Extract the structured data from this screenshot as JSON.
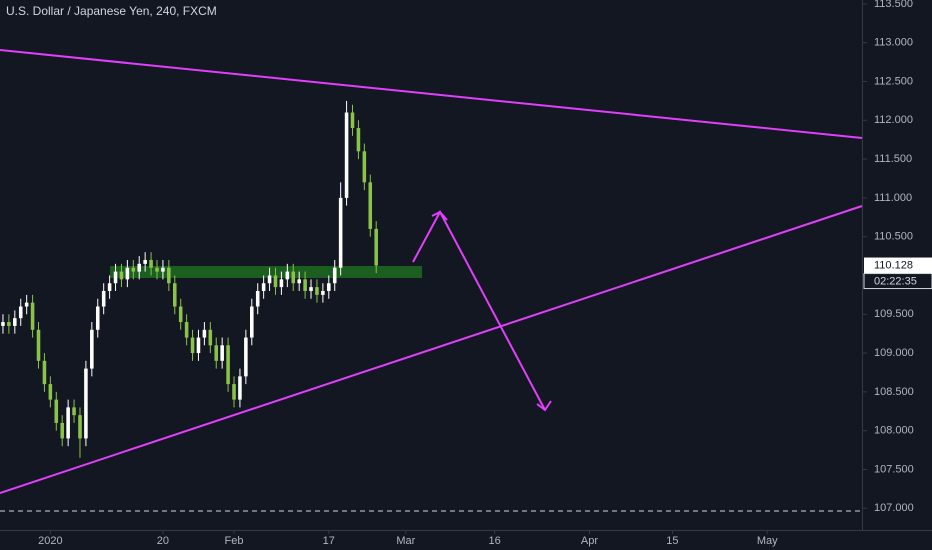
{
  "chart_data": {
    "type": "candlestick",
    "title": "U.S. Dollar / Japanese Yen, 240, FXCM",
    "countdown": "02:22:35",
    "up_color": "#ffffff",
    "down_color": "#8bc34a",
    "x": [
      -8,
      -7,
      -6,
      -5,
      -4,
      -3,
      -2,
      -1,
      0,
      1,
      2,
      3,
      4,
      5,
      6,
      7,
      8,
      9,
      10,
      11,
      12,
      13,
      14,
      15,
      16,
      17,
      18,
      19,
      20,
      21,
      22,
      23,
      24,
      25,
      26,
      27,
      28,
      29,
      30,
      31,
      32,
      33,
      34,
      35,
      36,
      37,
      38,
      39,
      40,
      41,
      42,
      43,
      44,
      45,
      46,
      47,
      48,
      49,
      50,
      51,
      52,
      53,
      54,
      55
    ],
    "open": [
      109.35,
      109.4,
      109.35,
      109.45,
      109.6,
      109.65,
      109.3,
      108.9,
      108.6,
      108.4,
      108.1,
      107.9,
      108.3,
      108.2,
      107.9,
      108.8,
      109.3,
      109.6,
      109.8,
      109.9,
      110.05,
      109.95,
      110.1,
      110.05,
      110.15,
      110.2,
      110.1,
      110.05,
      110.1,
      109.9,
      109.6,
      109.4,
      109.2,
      109.0,
      109.2,
      109.3,
      109.1,
      108.9,
      109.1,
      108.6,
      108.4,
      108.7,
      109.2,
      109.6,
      109.8,
      109.9,
      110.0,
      109.85,
      109.95,
      110.05,
      109.9,
      109.95,
      109.8,
      109.85,
      109.75,
      109.8,
      109.9,
      110.1,
      111.0,
      112.1,
      111.9,
      111.6,
      111.2,
      110.6
    ],
    "high": [
      109.5,
      109.5,
      109.55,
      109.7,
      109.75,
      109.75,
      109.4,
      109.0,
      108.7,
      108.5,
      108.2,
      108.4,
      108.4,
      108.3,
      108.9,
      109.4,
      109.7,
      109.9,
      110.0,
      110.15,
      110.15,
      110.2,
      110.2,
      110.25,
      110.3,
      110.3,
      110.2,
      110.2,
      110.2,
      110.0,
      109.7,
      109.5,
      109.3,
      109.3,
      109.4,
      109.4,
      109.2,
      109.2,
      109.2,
      108.7,
      108.8,
      109.3,
      109.7,
      109.9,
      110.0,
      110.1,
      110.1,
      110.05,
      110.15,
      110.15,
      110.05,
      110.05,
      109.95,
      109.95,
      109.9,
      110.0,
      110.2,
      111.2,
      112.25,
      112.2,
      112.0,
      111.7,
      111.3,
      110.7
    ],
    "low": [
      109.25,
      109.25,
      109.25,
      109.35,
      109.5,
      109.2,
      108.8,
      108.5,
      108.3,
      108.0,
      107.8,
      107.8,
      108.1,
      107.65,
      107.8,
      108.7,
      109.2,
      109.5,
      109.7,
      109.8,
      109.85,
      109.85,
      109.95,
      109.95,
      110.05,
      110.0,
      109.95,
      109.95,
      109.8,
      109.5,
      109.3,
      109.1,
      108.9,
      108.9,
      109.1,
      109.0,
      108.8,
      108.8,
      108.5,
      108.3,
      108.3,
      108.6,
      109.1,
      109.5,
      109.7,
      109.8,
      109.75,
      109.75,
      109.85,
      109.8,
      109.8,
      109.7,
      109.7,
      109.65,
      109.65,
      109.7,
      109.8,
      110.0,
      110.9,
      111.8,
      111.5,
      111.1,
      110.5,
      110.03
    ],
    "close": [
      109.4,
      109.35,
      109.45,
      109.6,
      109.65,
      109.3,
      108.9,
      108.6,
      108.4,
      108.1,
      107.9,
      108.3,
      108.2,
      107.9,
      108.8,
      109.3,
      109.6,
      109.8,
      109.9,
      110.05,
      109.95,
      110.1,
      110.05,
      110.15,
      110.2,
      110.1,
      110.05,
      110.1,
      109.9,
      109.6,
      109.4,
      109.2,
      109.0,
      109.2,
      109.3,
      109.1,
      108.9,
      109.1,
      108.6,
      108.4,
      108.7,
      109.2,
      109.6,
      109.8,
      109.9,
      110.0,
      109.85,
      109.95,
      110.05,
      109.9,
      109.95,
      109.8,
      109.85,
      109.75,
      109.8,
      109.9,
      110.1,
      111.0,
      112.1,
      111.9,
      111.6,
      111.2,
      110.6,
      110.128
    ],
    "xlim": [
      -8.5,
      137
    ],
    "xticks": [
      {
        "value": 0,
        "label": "2020"
      },
      {
        "value": 19,
        "label": "20"
      },
      {
        "value": 31,
        "label": "Feb"
      },
      {
        "value": 47,
        "label": "17"
      },
      {
        "value": 60,
        "label": "Mar"
      },
      {
        "value": 75,
        "label": "16"
      },
      {
        "value": 91,
        "label": "Apr"
      },
      {
        "value": 105,
        "label": "15"
      },
      {
        "value": 121,
        "label": "May"
      }
    ],
    "ylim": [
      106.72,
      113.55
    ],
    "yticks": [
      {
        "value": 107,
        "label": "107.000"
      },
      {
        "value": 107.5,
        "label": "107.500"
      },
      {
        "value": 108,
        "label": "108.000"
      },
      {
        "value": 108.5,
        "label": "108.500"
      },
      {
        "value": 109,
        "label": "109.000"
      },
      {
        "value": 109.5,
        "label": "109.500"
      },
      {
        "value": 110,
        "label": "110.000"
      },
      {
        "value": 110.5,
        "label": "110.500"
      },
      {
        "value": 111,
        "label": "111.000"
      },
      {
        "value": 111.5,
        "label": "111.500"
      },
      {
        "value": 112,
        "label": "112.000"
      },
      {
        "value": 112.5,
        "label": "112.500"
      },
      {
        "value": 113,
        "label": "113.000"
      },
      {
        "value": 113.5,
        "label": "113.500"
      }
    ],
    "grid": false
  }
}
